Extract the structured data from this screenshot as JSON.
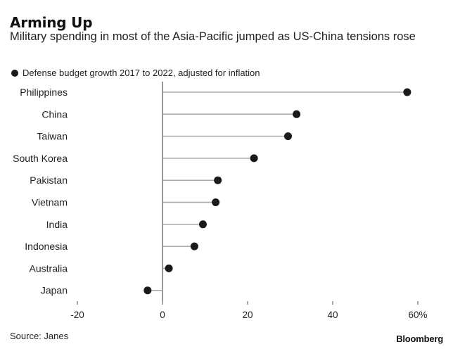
{
  "header": {
    "title": "Arming Up",
    "subtitle": "Military spending in most of the Asia-Pacific jumped as US-China tensions rose"
  },
  "legend": {
    "label": "Defense budget growth 2017 to 2022, adjusted for inflation"
  },
  "footer": {
    "source": "Source: Janes",
    "brand": "Bloomberg"
  },
  "colors": {
    "dot": "#1a1a1a",
    "stem": "#a8a8a8",
    "axis": "#555555"
  },
  "chart_data": {
    "type": "lollipop",
    "title": "Arming Up",
    "series_name": "Defense budget growth 2017 to 2022, adjusted for inflation",
    "categories": [
      "Philippines",
      "China",
      "Taiwan",
      "South Korea",
      "Pakistan",
      "Vietnam",
      "India",
      "Indonesia",
      "Australia",
      "Japan"
    ],
    "values": [
      57.5,
      31.5,
      29.5,
      21.5,
      13,
      12.5,
      9.5,
      7.5,
      1.5,
      -3.5
    ],
    "xlim": [
      -20,
      60
    ],
    "xticks": [
      -20,
      0,
      20,
      40,
      60
    ],
    "xtick_labels": [
      "-20",
      "0",
      "20",
      "40",
      "60%"
    ],
    "xlabel": "",
    "ylabel": "",
    "grid": false
  }
}
